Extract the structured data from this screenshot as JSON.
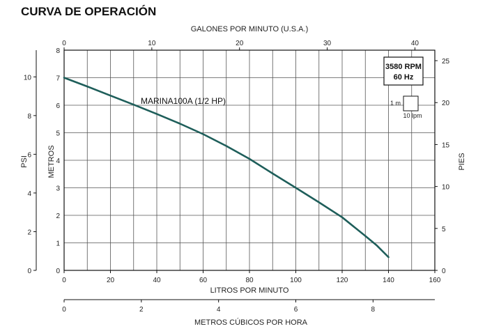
{
  "chart_data": {
    "type": "line",
    "title": "CURVA DE OPERACIÓN",
    "series": [
      {
        "name": "MARINA100A (1/2 HP)",
        "color": "#1e5e5a",
        "x": [
          0,
          10,
          20,
          30,
          40,
          50,
          60,
          70,
          80,
          90,
          100,
          110,
          120,
          130,
          135,
          140
        ],
        "y": [
          7.0,
          6.68,
          6.35,
          6.02,
          5.68,
          5.33,
          4.95,
          4.52,
          4.05,
          3.52,
          3.0,
          2.47,
          1.93,
          1.25,
          0.9,
          0.48
        ]
      }
    ],
    "axes": {
      "bottom": {
        "label": "LITROS POR MINUTO",
        "min": 0,
        "max": 160,
        "ticks": [
          "0",
          "20",
          "40",
          "60",
          "80",
          "100",
          "120",
          "140",
          "160"
        ]
      },
      "top": {
        "label": "GALONES POR MINUTO (U.S.A.)",
        "min": 0,
        "max": 42.27,
        "ticks": [
          "0",
          "10",
          "20",
          "30",
          "40"
        ]
      },
      "left_meters": {
        "label": "METROS",
        "min": 0,
        "max": 8,
        "ticks": [
          "0",
          "1",
          "2",
          "3",
          "4",
          "5",
          "6",
          "7",
          "8"
        ]
      },
      "left_psi": {
        "label": "PSI",
        "min": 0,
        "max": 11.38,
        "ticks": [
          "0",
          "2",
          "4",
          "6",
          "8",
          "10"
        ]
      },
      "right": {
        "label": "PIES",
        "min": 0,
        "max": 26.25,
        "ticks": [
          "0",
          "5",
          "10",
          "15",
          "20",
          "25"
        ]
      },
      "bottom2": {
        "label": "METROS CÚBICOS POR HORA",
        "min": 0,
        "max": 9.6,
        "ticks": [
          "0",
          "2",
          "4",
          "6",
          "8"
        ]
      }
    },
    "grid": true
  },
  "legend": {
    "rpm": "3580 RPM",
    "hz": "60 Hz",
    "scale_m": "1 m",
    "scale_lpm": "10 lpm"
  }
}
